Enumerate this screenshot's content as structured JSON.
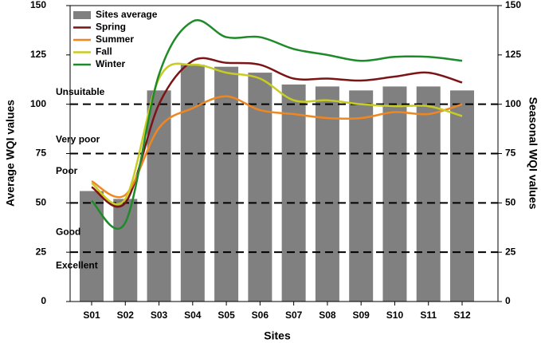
{
  "chart_data": {
    "type": "bar",
    "categories": [
      "S01",
      "S02",
      "S03",
      "S04",
      "S05",
      "S06",
      "S07",
      "S08",
      "S09",
      "S10",
      "S11",
      "S12"
    ],
    "series": [
      {
        "name": "Sites average",
        "type": "bar",
        "color": "#808080",
        "values": [
          56,
          52,
          107,
          120,
          119,
          116,
          110,
          109,
          107,
          109,
          109,
          107
        ]
      },
      {
        "name": "Spring",
        "type": "line",
        "axis": "y2",
        "color": "#7b1416",
        "values": [
          58,
          50,
          100,
          122,
          121,
          120,
          113,
          113,
          112,
          114,
          116,
          111
        ]
      },
      {
        "name": "Summer",
        "type": "line",
        "axis": "y2",
        "color": "#f0861f",
        "values": [
          61,
          54,
          88,
          98,
          104,
          97,
          95,
          93,
          93,
          96,
          95,
          100
        ]
      },
      {
        "name": "Fall",
        "type": "line",
        "axis": "y2",
        "color": "#c8cc22",
        "values": [
          60,
          52,
          113,
          120,
          116,
          113,
          102,
          102,
          100,
          99,
          99,
          94
        ]
      },
      {
        "name": "Winter",
        "type": "line",
        "axis": "y2",
        "color": "#1f8a2a",
        "values": [
          51,
          40,
          115,
          142,
          134,
          134,
          128,
          125,
          122,
          124,
          124,
          122
        ]
      }
    ],
    "x_label": "Sites",
    "y_label": "Average WQI values",
    "y2_label": "Seasonal WQI values",
    "ylim": [
      0,
      150
    ],
    "yticks": [
      0,
      25,
      50,
      75,
      100,
      125,
      150
    ],
    "y2lim": [
      0,
      150
    ],
    "y2ticks": [
      0,
      25,
      50,
      75,
      100,
      125,
      150
    ],
    "thresholds": [
      25,
      50,
      75,
      100
    ],
    "quality_labels": [
      "Excellent",
      "Good",
      "Poor",
      "Very poor",
      "Unsuitable"
    ],
    "legend": "upper-left"
  }
}
